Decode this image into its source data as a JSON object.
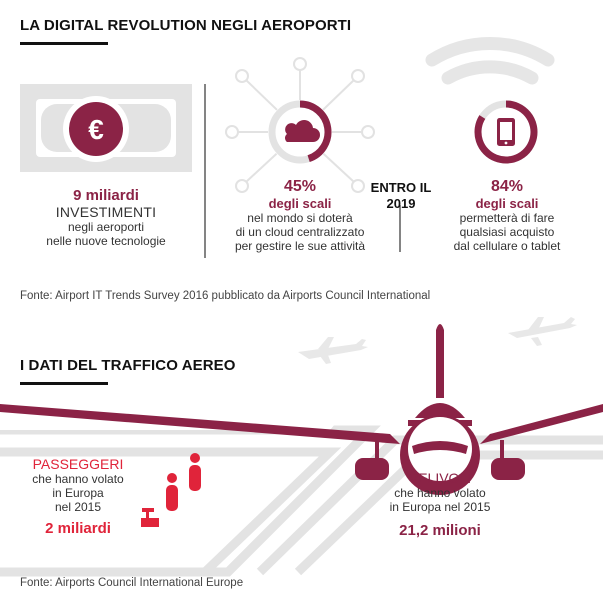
{
  "section1": {
    "title": "LA DIGITAL REVOLUTION NEGLI AEROPORTI",
    "stats": [
      {
        "value": "9 miliardi",
        "label": "INVESTIMENTI",
        "desc_lines": [
          "negli aeroporti",
          "nelle nuove tecnologie"
        ],
        "icon": "euro-banknote-icon"
      },
      {
        "value": "45%",
        "sub": "degli scali",
        "desc_lines": [
          "nel mondo si doterà",
          "di un cloud centralizzato",
          "per gestire le sue attività"
        ],
        "icon": "cloud-network-icon",
        "percent": 45
      },
      {
        "when_lines": [
          "ENTRO IL",
          "2019"
        ]
      },
      {
        "value": "84%",
        "sub": "degli scali",
        "desc_lines": [
          "permetterà di fare",
          "qualsiasi acquisto",
          "dal cellulare o tablet"
        ],
        "icon": "smartphone-wifi-icon",
        "percent": 84
      }
    ],
    "source": "Fonte: Airport IT Trends Survey 2016 pubblicato da Airports Council International"
  },
  "section2": {
    "title": "I DATI DEL TRAFFICO AEREO",
    "passengers": {
      "label": "PASSEGGERI",
      "desc_lines": [
        "che hanno volato",
        "in Europa",
        "nel 2015"
      ],
      "value": "2 miliardi"
    },
    "aircraft": {
      "label": "VELIVOLI",
      "desc_lines": [
        "che hanno volato",
        "in Europa nel 2015"
      ],
      "value": "21,2 milioni"
    },
    "source": "Fonte: Airports Council International Europe"
  },
  "colors": {
    "maroon": "#8b2346",
    "red": "#e0243a",
    "grey": "#e2e2e2",
    "dark": "#111111"
  }
}
